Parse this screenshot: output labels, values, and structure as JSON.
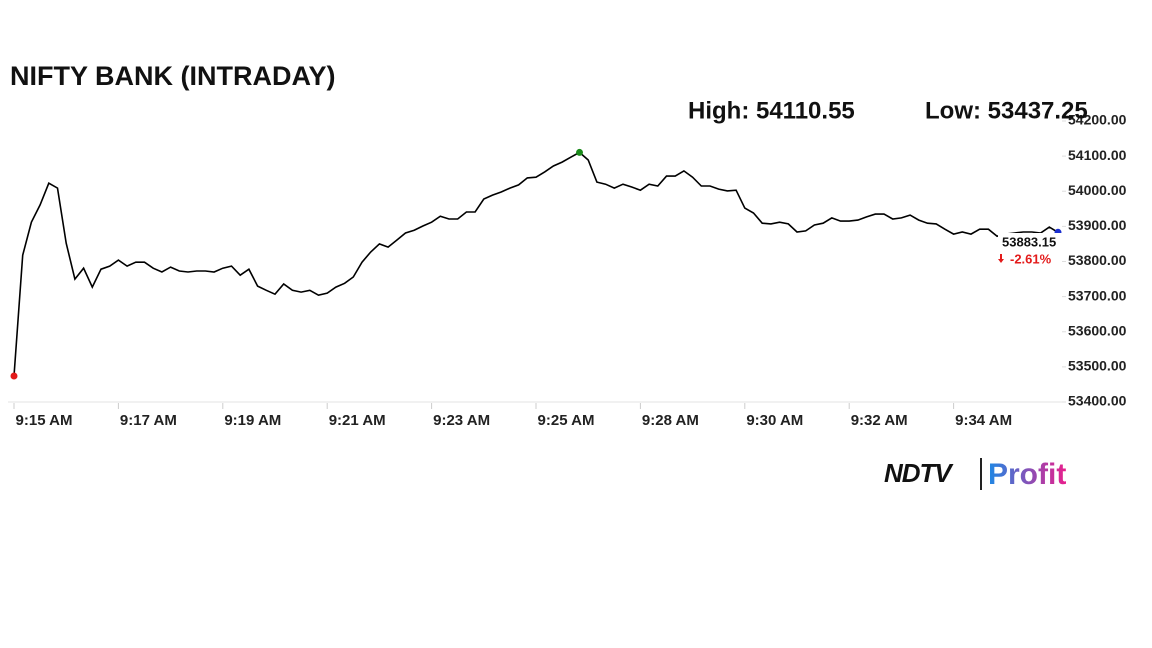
{
  "chart_data": {
    "type": "line",
    "title": "NIFTY BANK (INTRADAY)",
    "high_label": "High: 54110.55",
    "low_label": "Low: 53437.25",
    "categories": [
      "9:15 AM",
      null,
      null,
      null,
      null,
      null,
      null,
      null,
      null,
      null,
      null,
      null,
      "9:17 AM",
      null,
      null,
      null,
      null,
      null,
      null,
      null,
      null,
      null,
      null,
      null,
      "9:19 AM",
      null,
      null,
      null,
      null,
      null,
      null,
      null,
      null,
      null,
      null,
      null,
      "9:21 AM",
      null,
      null,
      null,
      null,
      null,
      null,
      null,
      null,
      null,
      null,
      null,
      "9:23 AM",
      null,
      null,
      null,
      null,
      null,
      null,
      null,
      null,
      null,
      null,
      null,
      "9:25 AM",
      null,
      null,
      null,
      null,
      null,
      null,
      null,
      null,
      null,
      null,
      null,
      "9:28 AM",
      null,
      null,
      null,
      null,
      null,
      null,
      null,
      null,
      null,
      null,
      null,
      "9:30 AM",
      null,
      null,
      null,
      null,
      null,
      null,
      null,
      null,
      null,
      null,
      null,
      "9:32 AM",
      null,
      null,
      null,
      null,
      null,
      null,
      null,
      null,
      null,
      null,
      null,
      "9:34 AM",
      null,
      null,
      null,
      null,
      null,
      null,
      null,
      null,
      null,
      null,
      null,
      null
    ],
    "values": [
      53474,
      53818,
      53912,
      53961,
      54023,
      54009,
      53852,
      53750,
      53781,
      53727,
      53778,
      53787,
      53804,
      53787,
      53798,
      53798,
      53781,
      53770,
      53784,
      53773,
      53770,
      53773,
      53773,
      53770,
      53781,
      53787,
      53761,
      53778,
      53730,
      53718,
      53707,
      53736,
      53718,
      53713,
      53718,
      53704,
      53710,
      53727,
      53738,
      53756,
      53798,
      53827,
      53850,
      53841,
      53861,
      53881,
      53889,
      53901,
      53912,
      53929,
      53921,
      53921,
      53941,
      53941,
      53978,
      53989,
      53998,
      54009,
      54018,
      54038,
      54040,
      54055,
      54072,
      54083,
      54097,
      54110.55,
      54089,
      54026,
      54020,
      54009,
      54020,
      54012,
      54003,
      54020,
      54015,
      54043,
      54043,
      54058,
      54040,
      54015,
      54015,
      54006,
      54001,
      54003,
      53952,
      53938,
      53909,
      53907,
      53912,
      53907,
      53884,
      53887,
      53904,
      53909,
      53924,
      53915,
      53915,
      53918,
      53927,
      53935,
      53935,
      53921,
      53924,
      53932,
      53918,
      53909,
      53907,
      53892,
      53878,
      53884,
      53878,
      53892,
      53892,
      53872,
      53878,
      53881,
      53884,
      53884,
      53881,
      53898,
      53883.15
    ],
    "color": "#000000",
    "low_marker_color": "#e31b1b",
    "high_marker_color": "#1a8a1a",
    "last_marker_color": "#1b2fd0",
    "change_label": "-2.61%",
    "change_color": "#e31b1b",
    "ylim": [
      53400,
      54200
    ],
    "yticks": [
      {
        "value": 53400,
        "label": "53400.00"
      },
      {
        "value": 53500,
        "label": "53500.00"
      },
      {
        "value": 53600,
        "label": "53600.00"
      },
      {
        "value": 53700,
        "label": "53700.00"
      },
      {
        "value": 53800,
        "label": "53800.00"
      },
      {
        "value": 53900,
        "label": "53900.00"
      },
      {
        "value": 54000,
        "label": "54000.00"
      },
      {
        "value": 54100,
        "label": "54100.00"
      },
      {
        "value": 54200,
        "label": "54200.00"
      }
    ]
  },
  "logo": {
    "brand": "NDTV",
    "product": "Profit"
  }
}
